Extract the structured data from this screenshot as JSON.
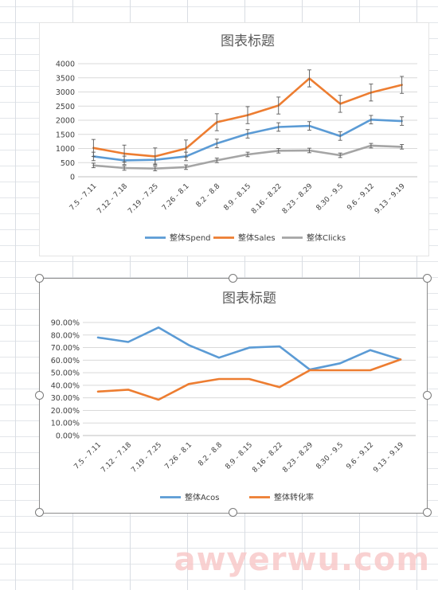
{
  "chart_data": [
    {
      "type": "line",
      "title": "图表标题",
      "categories": [
        "7.5 - 7.11",
        "7.12 - 7.18",
        "7.19 - 7.25",
        "7.26 - 8.1",
        "8.2 - 8.8",
        "8.9 - 8.15",
        "8.16 - 8.22",
        "8.23 - 8.29",
        "8.30 - 9.5",
        "9.6 - 9.12",
        "9.13 - 9.19"
      ],
      "series": [
        {
          "name": "整体Spend",
          "color": "#5b9bd5",
          "values": [
            720,
            580,
            600,
            720,
            1180,
            1520,
            1760,
            1800,
            1440,
            2020,
            1970
          ],
          "errors": [
            150,
            150,
            150,
            150,
            150,
            150,
            150,
            150,
            150,
            150,
            150
          ]
        },
        {
          "name": "整体Sales",
          "color": "#ed7d31",
          "values": [
            1020,
            820,
            720,
            1000,
            1930,
            2180,
            2520,
            3480,
            2580,
            2980,
            3250
          ],
          "errors": [
            300,
            300,
            300,
            300,
            300,
            300,
            300,
            300,
            300,
            300,
            300
          ]
        },
        {
          "name": "整体Clicks",
          "color": "#a5a5a5",
          "values": [
            400,
            310,
            290,
            340,
            580,
            790,
            920,
            930,
            760,
            1100,
            1060
          ],
          "errors": [
            80,
            80,
            80,
            80,
            80,
            80,
            80,
            80,
            80,
            80,
            80
          ]
        }
      ],
      "ylim": [
        0,
        4000
      ],
      "yticks": [
        0,
        500,
        1000,
        1500,
        2000,
        2500,
        3000,
        3500,
        4000
      ],
      "ytick_labels": [
        "0",
        "500",
        "1000",
        "1500",
        "2000",
        "2500",
        "3000",
        "3500",
        "4000"
      ],
      "grid": true,
      "legend": "bottom"
    },
    {
      "type": "line",
      "title": "图表标题",
      "categories": [
        "7.5 - 7.11",
        "7.12 - 7.18",
        "7.19 - 7.25",
        "7.26 - 8.1",
        "8.2 - 8.8",
        "8.9 - 8.15",
        "8.16 - 8.22",
        "8.23 - 8.29",
        "8.30 - 9.5",
        "9.6 - 9.12",
        "9.13 - 9.19"
      ],
      "series": [
        {
          "name": "整体Acos",
          "color": "#5b9bd5",
          "values": [
            0.78,
            0.745,
            0.86,
            0.72,
            0.62,
            0.7,
            0.71,
            0.525,
            0.575,
            0.68,
            0.605
          ]
        },
        {
          "name": "整体转化率",
          "color": "#ed7d31",
          "values": [
            0.35,
            0.365,
            0.285,
            0.41,
            0.45,
            0.45,
            0.385,
            0.52,
            0.52,
            0.52,
            0.605
          ]
        }
      ],
      "ylim": [
        0,
        0.9
      ],
      "yticks": [
        0,
        0.1,
        0.2,
        0.3,
        0.4,
        0.5,
        0.6,
        0.7,
        0.8,
        0.9
      ],
      "ytick_labels": [
        "0.00%",
        "10.00%",
        "20.00%",
        "30.00%",
        "40.00%",
        "50.00%",
        "60.00%",
        "70.00%",
        "80.00%",
        "90.00%"
      ],
      "grid": true,
      "legend": "bottom"
    }
  ],
  "watermark": "awyerwu.com"
}
